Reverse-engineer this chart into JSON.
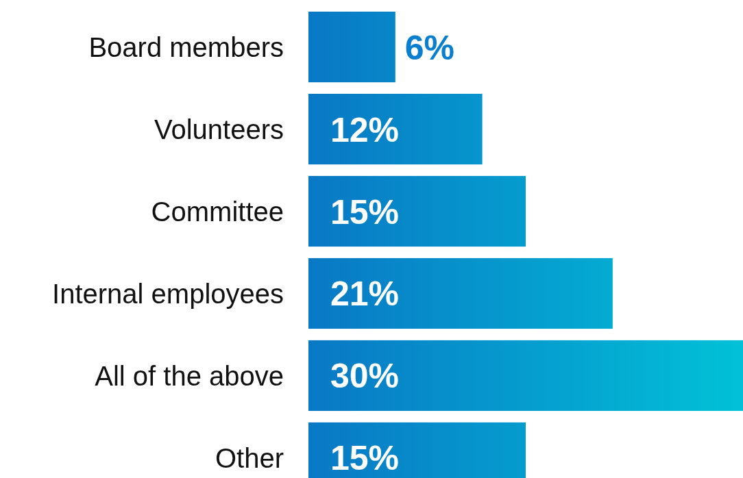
{
  "chart_data": {
    "type": "bar",
    "orientation": "horizontal",
    "categories": [
      "Board members",
      "Volunteers",
      "Committee",
      "Internal employees",
      "All of the above",
      "Other"
    ],
    "values": [
      6,
      12,
      15,
      21,
      30,
      15
    ],
    "value_labels": [
      "6%",
      "12%",
      "15%",
      "21%",
      "30%",
      "15%"
    ],
    "color": "#0a7fd0"
  }
}
